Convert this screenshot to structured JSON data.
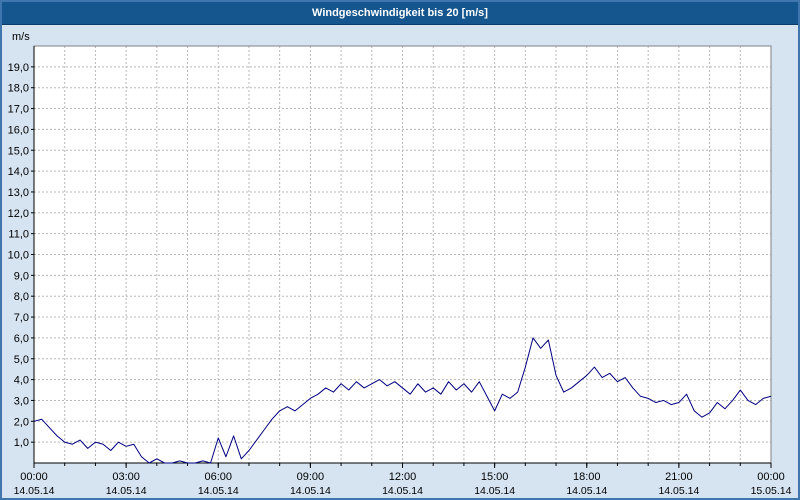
{
  "header": {
    "title": "Windgeschwindigkeit bis 20 [m/s]"
  },
  "colors": {
    "header_bg": "#15568e",
    "header_text": "#ffffff",
    "page_bg": "#d6e4f2",
    "plot_bg": "#ffffff",
    "grid": "#b8b8b8",
    "plot_border": "#808080",
    "axis": "#000000",
    "line": "#000080",
    "outer_border": "#3f76ad"
  },
  "chart_data": {
    "type": "line",
    "title": "Windgeschwindigkeit bis 20 [m/s]",
    "ylabel": "m/s",
    "xlabel": "",
    "ylim": [
      0,
      20
    ],
    "y_tick_step": 1,
    "y_tick_format": "comma-decimal",
    "y_tick_labels": [
      "1,0",
      "2,0",
      "3,0",
      "4,0",
      "5,0",
      "6,0",
      "7,0",
      "8,0",
      "9,0",
      "10,0",
      "11,0",
      "12,0",
      "13,0",
      "14,0",
      "15,0",
      "16,0",
      "17,0",
      "18,0",
      "19,0"
    ],
    "x_range_hours": [
      0,
      24
    ],
    "x_tick_step_hours": 3,
    "x_minor_grid_hours": 1,
    "grid": true,
    "legend_position": "none",
    "x_ticks": [
      {
        "time": "00:00",
        "date": "14.05.14"
      },
      {
        "time": "03:00",
        "date": "14.05.14"
      },
      {
        "time": "06:00",
        "date": "14.05.14"
      },
      {
        "time": "09:00",
        "date": "14.05.14"
      },
      {
        "time": "12:00",
        "date": "14.05.14"
      },
      {
        "time": "15:00",
        "date": "14.05.14"
      },
      {
        "time": "18:00",
        "date": "14.05.14"
      },
      {
        "time": "21:00",
        "date": "14.05.14"
      },
      {
        "time": "00:00",
        "date": "15.05.14"
      }
    ],
    "series": [
      {
        "name": "Windgeschwindigkeit",
        "color": "#000080",
        "x_start_hour": 0,
        "x_step_hour": 0.25,
        "values": [
          2.0,
          2.1,
          1.7,
          1.3,
          1.0,
          0.9,
          1.1,
          0.7,
          1.0,
          0.9,
          0.6,
          1.0,
          0.8,
          0.9,
          0.3,
          0.0,
          0.2,
          0.0,
          0.0,
          0.1,
          0.0,
          0.0,
          0.1,
          0.0,
          1.2,
          0.3,
          1.3,
          0.2,
          0.6,
          1.1,
          1.6,
          2.1,
          2.5,
          2.7,
          2.5,
          2.8,
          3.1,
          3.3,
          3.6,
          3.4,
          3.8,
          3.5,
          3.9,
          3.6,
          3.8,
          4.0,
          3.7,
          3.9,
          3.6,
          3.3,
          3.8,
          3.4,
          3.6,
          3.3,
          3.9,
          3.5,
          3.8,
          3.4,
          3.9,
          3.2,
          2.5,
          3.3,
          3.1,
          3.4,
          4.6,
          6.0,
          5.5,
          5.9,
          4.2,
          3.4,
          3.6,
          3.9,
          4.2,
          4.6,
          4.1,
          4.3,
          3.9,
          4.1,
          3.6,
          3.2,
          3.1,
          2.9,
          3.0,
          2.8,
          2.9,
          3.3,
          2.5,
          2.2,
          2.4,
          2.9,
          2.6,
          3.0,
          3.5,
          3.0,
          2.8,
          3.1,
          3.2
        ]
      }
    ]
  }
}
